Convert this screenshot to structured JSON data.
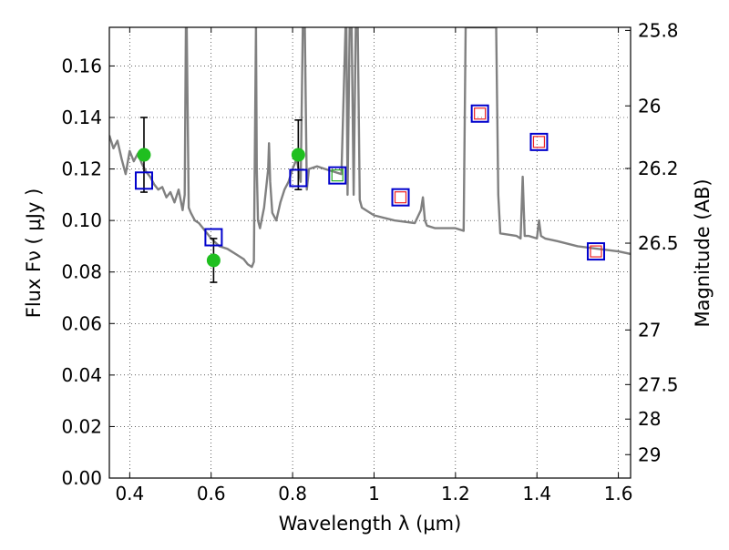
{
  "chart_data": {
    "type": "scatter",
    "xlabel": "Wavelength  λ (μm)",
    "ylabel": "Flux  Fν  ( μJy )",
    "y2label": "Magnitude (AB)",
    "xlim": [
      0.35,
      1.63
    ],
    "ylim": [
      0.0,
      0.175
    ],
    "x_ticks": [
      0.4,
      0.6,
      0.8,
      1.0,
      1.2,
      1.4,
      1.6
    ],
    "x_tick_labels": [
      "0.4",
      "0.6",
      "0.8",
      "1",
      "1.2",
      "1.4",
      "1.6"
    ],
    "y_ticks": [
      0.0,
      0.02,
      0.04,
      0.06,
      0.08,
      0.1,
      0.12,
      0.14,
      0.16
    ],
    "y_tick_labels": [
      "0.00",
      "0.02",
      "0.04",
      "0.06",
      "0.08",
      "0.10",
      "0.12",
      "0.14",
      "0.16"
    ],
    "mag_ticks": [
      {
        "label": "25.8",
        "flux": 0.1738
      },
      {
        "label": "26",
        "flux": 0.1445
      },
      {
        "label": "26.2",
        "flux": 0.1202
      },
      {
        "label": "26.5",
        "flux": 0.0912
      },
      {
        "label": "27",
        "flux": 0.0575
      },
      {
        "label": "27.5",
        "flux": 0.0363
      },
      {
        "label": "28",
        "flux": 0.0229
      },
      {
        "label": "29",
        "flux": 0.0091
      }
    ],
    "grid": true,
    "colors": {
      "spectrum": "#808080",
      "observed": "#1fbf1f",
      "model_box": "#0000cc",
      "inner_green": "#22aa22",
      "inner_red": "#ee2222",
      "errorbar": "#000000"
    },
    "series": [
      {
        "kind": "line",
        "x": [
          0.35,
          0.36,
          0.37,
          0.38,
          0.39,
          0.4,
          0.41,
          0.42,
          0.43,
          0.44,
          0.45,
          0.46,
          0.47,
          0.48,
          0.49,
          0.5,
          0.51,
          0.52,
          0.53,
          0.535,
          0.538,
          0.54,
          0.545,
          0.55,
          0.56,
          0.57,
          0.58,
          0.59,
          0.6,
          0.62,
          0.64,
          0.66,
          0.68,
          0.69,
          0.7,
          0.705,
          0.71,
          0.712,
          0.715,
          0.72,
          0.73,
          0.74,
          0.742,
          0.745,
          0.75,
          0.76,
          0.77,
          0.78,
          0.79,
          0.8,
          0.81,
          0.82,
          0.825,
          0.83,
          0.835,
          0.84,
          0.86,
          0.88,
          0.9,
          0.92,
          0.93,
          0.932,
          0.935,
          0.94,
          0.945,
          0.95,
          0.955,
          0.96,
          0.965,
          0.97,
          1.0,
          1.05,
          1.1,
          1.115,
          1.12,
          1.125,
          1.13,
          1.15,
          1.2,
          1.22,
          1.225,
          1.23,
          1.24,
          1.25,
          1.28,
          1.3,
          1.305,
          1.31,
          1.35,
          1.36,
          1.365,
          1.37,
          1.38,
          1.4,
          1.405,
          1.41,
          1.42,
          1.45,
          1.5,
          1.55,
          1.6,
          1.63
        ],
        "y": [
          0.133,
          0.128,
          0.131,
          0.124,
          0.118,
          0.127,
          0.123,
          0.126,
          0.122,
          0.119,
          0.117,
          0.114,
          0.112,
          0.113,
          0.109,
          0.111,
          0.107,
          0.112,
          0.104,
          0.11,
          0.175,
          0.175,
          0.105,
          0.103,
          0.1,
          0.099,
          0.097,
          0.095,
          0.093,
          0.09,
          0.089,
          0.087,
          0.085,
          0.083,
          0.082,
          0.084,
          0.175,
          0.12,
          0.1,
          0.097,
          0.105,
          0.12,
          0.13,
          0.115,
          0.103,
          0.1,
          0.107,
          0.112,
          0.115,
          0.12,
          0.124,
          0.115,
          0.175,
          0.175,
          0.112,
          0.12,
          0.121,
          0.12,
          0.119,
          0.118,
          0.175,
          0.175,
          0.11,
          0.175,
          0.175,
          0.11,
          0.175,
          0.175,
          0.108,
          0.105,
          0.102,
          0.1,
          0.099,
          0.104,
          0.109,
          0.1,
          0.098,
          0.097,
          0.097,
          0.096,
          0.175,
          0.175,
          0.175,
          0.175,
          0.175,
          0.175,
          0.11,
          0.095,
          0.094,
          0.093,
          0.117,
          0.094,
          0.094,
          0.093,
          0.1,
          0.094,
          0.093,
          0.092,
          0.09,
          0.089,
          0.088,
          0.087
        ]
      },
      {
        "kind": "observed",
        "points": [
          {
            "x": 0.435,
            "y": 0.1255,
            "err": 0.0145
          },
          {
            "x": 0.606,
            "y": 0.0845,
            "err": 0.0085
          },
          {
            "x": 0.814,
            "y": 0.1255,
            "err": 0.0135
          }
        ]
      },
      {
        "kind": "model",
        "points": [
          {
            "x": 0.435,
            "y": 0.1155,
            "inner": "none"
          },
          {
            "x": 0.606,
            "y": 0.0935,
            "inner": "none"
          },
          {
            "x": 0.814,
            "y": 0.1165,
            "inner": "none"
          },
          {
            "x": 0.91,
            "y": 0.1175,
            "inner": "green"
          },
          {
            "x": 1.065,
            "y": 0.109,
            "inner": "red"
          },
          {
            "x": 1.26,
            "y": 0.1415,
            "inner": "red"
          },
          {
            "x": 1.405,
            "y": 0.1305,
            "inner": "red"
          },
          {
            "x": 1.545,
            "y": 0.088,
            "inner": "red"
          }
        ]
      }
    ]
  }
}
